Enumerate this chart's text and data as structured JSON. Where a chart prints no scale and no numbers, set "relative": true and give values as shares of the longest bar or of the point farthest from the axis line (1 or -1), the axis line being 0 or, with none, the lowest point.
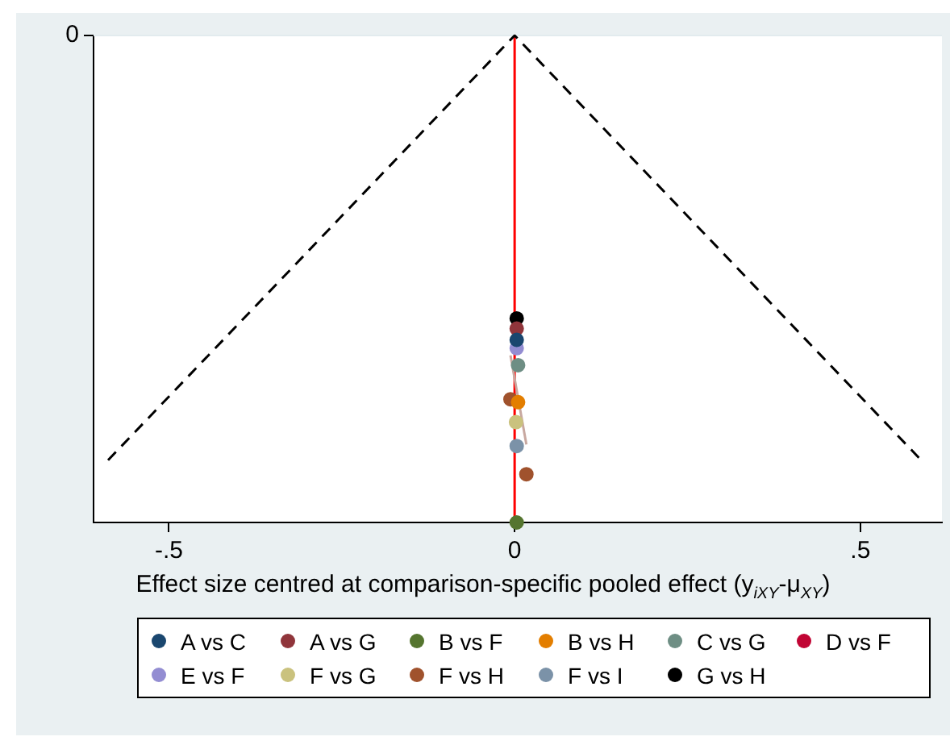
{
  "chart_data": {
    "type": "scatter",
    "xlabel": "Effect size centred at comparison-specific pooled effect (y$_{iXY}$-μ$_{XY}$)",
    "xlim": [
      -0.609,
      0.618
    ],
    "xticks": [
      {
        "value": -0.5,
        "label": "-.5"
      },
      0,
      {
        "value": 0.5,
        "label": ".5"
      }
    ],
    "relative": true,
    "annotations": [
      "0"
    ],
    "legend": "bottom",
    "marker": "circle",
    "ref_lines": [
      {
        "axis": "x",
        "value": 0,
        "color": "#ff0000"
      }
    ],
    "series": [
      {
        "name": "A vs C",
        "color": "#1a476f",
        "x": [
          0.003
        ],
        "values": [
          -0.625
        ]
      },
      {
        "name": "A vs G",
        "color": "#90353b",
        "x": [
          0.003
        ],
        "values": [
          -0.602
        ]
      },
      {
        "name": "B vs F",
        "color": "#55752f",
        "x": [
          0.003
        ],
        "values": [
          -1
        ]
      },
      {
        "name": "B vs H",
        "color": "#e37e00",
        "x": [
          0.005
        ],
        "values": [
          -0.753
        ]
      },
      {
        "name": "C vs G",
        "color": "#6e8e84",
        "x": [
          0.005
        ],
        "values": [
          -0.677
        ]
      },
      {
        "name": "D vs F",
        "color": "#c10534",
        "x": [
          null
        ],
        "values": [
          null
        ]
      },
      {
        "name": "E vs F",
        "color": "#938dd2",
        "x": [
          0.003
        ],
        "values": [
          -0.642
        ]
      },
      {
        "name": "F vs G",
        "color": "#cac27e",
        "x": [
          0.002
        ],
        "values": [
          -0.794
        ]
      },
      {
        "name": "F vs H",
        "color": "#a0522d",
        "x": [
          -0.006,
          0.017
        ],
        "values": [
          -0.747,
          -0.901
        ]
      },
      {
        "name": "F vs I",
        "color": "#7b92a8",
        "x": [
          0.003
        ],
        "values": [
          -0.843
        ]
      },
      {
        "name": "G vs H",
        "color": "#000000",
        "x": [
          0.003
        ],
        "values": [
          -0.581
        ]
      },
      {
        "type": "line",
        "color": "#c8a8a0",
        "marker": "none",
        "line_style": "solid",
        "x": [
          -0.006,
          0.017
        ],
        "values": [
          -0.657,
          -0.84
        ]
      },
      {
        "type": "line",
        "color": "#000000",
        "marker": "none",
        "line_style": "dashed",
        "x": [
          -0.588,
          0,
          0.588
        ],
        "values": [
          -0.872,
          0,
          -0.872
        ]
      }
    ]
  }
}
